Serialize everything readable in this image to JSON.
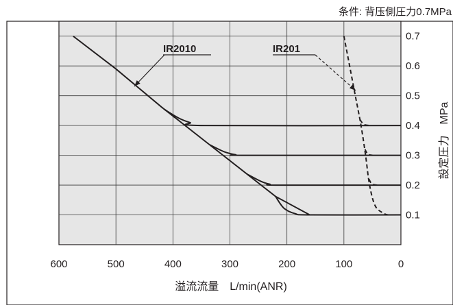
{
  "chart_data": {
    "type": "line",
    "condition": "条件: 背压側圧力0.7MPa",
    "xlabel": "溢流流量　L/min(ANR)",
    "ylabel": "設定圧力　MPa",
    "xlim": [
      600,
      0
    ],
    "ylim": [
      0,
      0.7
    ],
    "x_ticks": [
      "600",
      "500",
      "400",
      "300",
      "200",
      "100",
      "0"
    ],
    "y_ticks": [
      "0.1",
      "0.2",
      "0.3",
      "0.4",
      "0.5",
      "0.6",
      "0.7"
    ],
    "grid": true,
    "series": [
      {
        "name": "IR2010",
        "style": "solid",
        "envelope": [
          [
            575,
            0.7
          ],
          [
            500,
            0.59
          ],
          [
            420,
            0.462
          ],
          [
            330,
            0.327
          ],
          [
            220,
            0.162
          ],
          [
            160,
            0.1
          ]
        ],
        "curves": [
          [
            [
              415,
              0.454
            ],
            [
              390,
              0.425
            ],
            [
              370,
              0.41
            ],
            [
              345,
              0.4
            ],
            [
              0,
              0.4
            ]
          ],
          [
            [
              335,
              0.335
            ],
            [
              310,
              0.312
            ],
            [
              290,
              0.302
            ],
            [
              275,
              0.3
            ],
            [
              0,
              0.3
            ]
          ],
          [
            [
              270,
              0.237
            ],
            [
              245,
              0.212
            ],
            [
              230,
              0.203
            ],
            [
              215,
              0.2
            ],
            [
              0,
              0.2
            ]
          ],
          [
            [
              220,
              0.162
            ],
            [
              205,
              0.122
            ],
            [
              185,
              0.104
            ],
            [
              160,
              0.1
            ],
            [
              0,
              0.1
            ]
          ]
        ]
      },
      {
        "name": "IR201",
        "style": "dashed",
        "envelope": [
          [
            100,
            0.7
          ],
          [
            90,
            0.6
          ],
          [
            80,
            0.5
          ],
          [
            70,
            0.4
          ],
          [
            62,
            0.3
          ],
          [
            55,
            0.2
          ],
          [
            45,
            0.13
          ],
          [
            30,
            0.105
          ],
          [
            22,
            0.1
          ]
        ],
        "curves": [
          [
            [
              72,
              0.42
            ],
            [
              65,
              0.404
            ],
            [
              55,
              0.4
            ]
          ],
          [
            [
              63,
              0.32
            ],
            [
              58,
              0.304
            ],
            [
              50,
              0.3
            ]
          ],
          [
            [
              56,
              0.22
            ],
            [
              51,
              0.204
            ],
            [
              42,
              0.2
            ]
          ]
        ]
      }
    ]
  },
  "colors": {
    "plot_background": "#e6e6e6",
    "grid": "#3b3b3b",
    "line": "#231f20"
  }
}
